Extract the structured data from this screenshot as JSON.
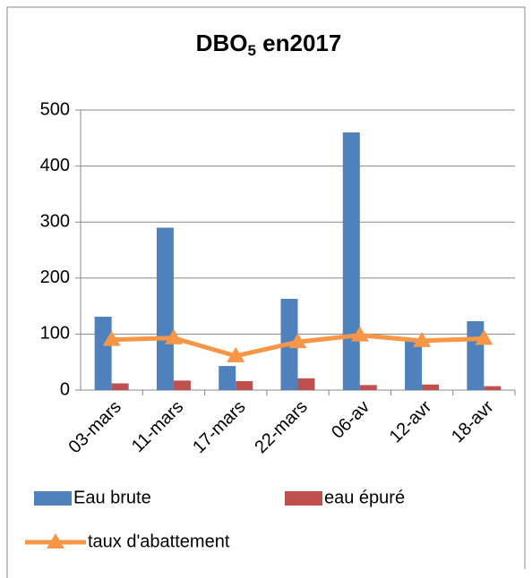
{
  "chart_data": {
    "type": "bar_line",
    "title": [
      "DBO",
      "5",
      " en2017"
    ],
    "categories": [
      "03-mars",
      "11-mars",
      "17-mars",
      "22-mars",
      "06-av",
      "12-avr",
      "18-avr"
    ],
    "series": [
      {
        "name": "Eau brute",
        "color": "#4f81bd",
        "kind": "bar",
        "values": [
          131,
          290,
          43,
          163,
          460,
          90,
          123
        ]
      },
      {
        "name": "eau épuré",
        "color": "#c0504d",
        "kind": "bar",
        "values": [
          12,
          17,
          16,
          21,
          9,
          10,
          7
        ]
      },
      {
        "name": "taux d'abattement",
        "color": "#f79646",
        "kind": "line",
        "values": [
          90,
          93,
          61,
          86,
          98,
          88,
          92
        ]
      }
    ],
    "ylim": [
      0,
      500
    ],
    "yticks": [
      0,
      100,
      200,
      300,
      400,
      500
    ],
    "grid": true
  }
}
